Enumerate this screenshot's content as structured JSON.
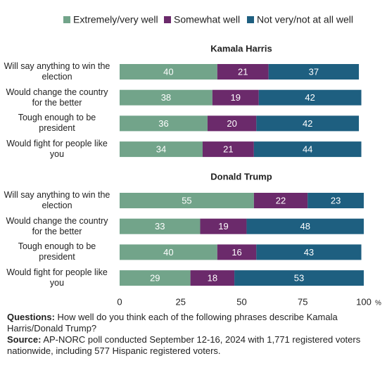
{
  "chart_data": {
    "type": "bar",
    "orientation": "horizontal",
    "stacked": true,
    "groups": [
      {
        "title": "Kamala Harris",
        "categories": [
          "Will say anything to win the election",
          "Would change the country for the better",
          "Tough enough to be president",
          "Would fight for people like you"
        ]
      },
      {
        "title": "Donald Trump",
        "categories": [
          "Will say anything to win the election",
          "Would change the country for the better",
          "Tough enough to be president",
          "Would fight for people like you"
        ]
      }
    ],
    "series": [
      {
        "name": "Extremely/very well",
        "color": "#72a48a",
        "values": [
          40,
          38,
          36,
          34,
          55,
          33,
          40,
          29
        ]
      },
      {
        "name": "Somewhat well",
        "color": "#6b2a6b",
        "values": [
          21,
          19,
          20,
          21,
          22,
          19,
          16,
          18
        ]
      },
      {
        "name": "Not very/not at all well",
        "color": "#1e5f80",
        "values": [
          37,
          42,
          42,
          44,
          23,
          48,
          43,
          53
        ]
      }
    ],
    "xlim": [
      0,
      100
    ],
    "xticks": [
      0,
      25,
      50,
      75,
      100
    ],
    "x_unit": "%"
  },
  "notes": [
    {
      "label": "Questions:",
      "text": "How well do you think each of the following phrases describe Kamala Harris/Donald Trump?"
    },
    {
      "label": "Source:",
      "text": "AP-NORC poll conducted September 12-16, 2024 with 1,771 registered voters nationwide, including 577 Hispanic registered voters."
    }
  ]
}
